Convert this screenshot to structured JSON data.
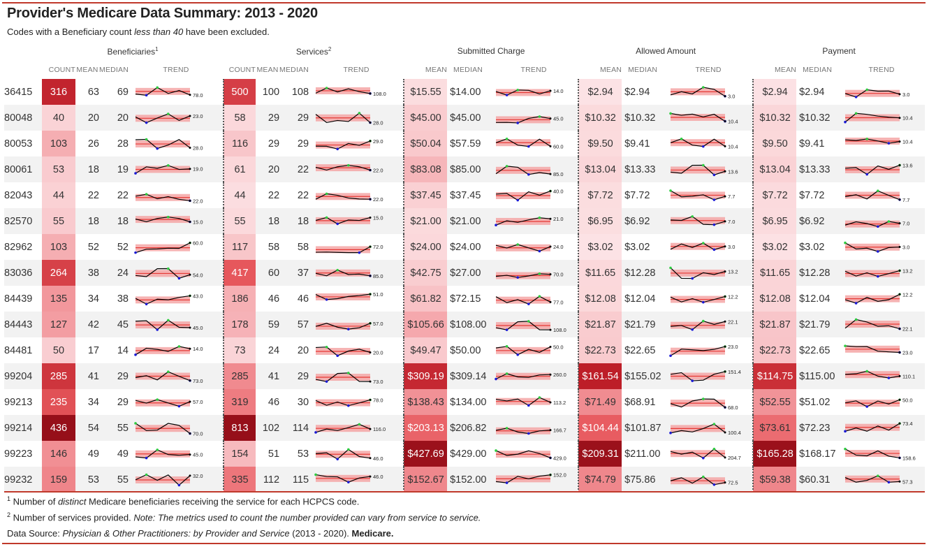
{
  "title": "Provider's Medicare Data Summary: 2013 - 2020",
  "subtitle": {
    "prefix": "Codes with a Beneficiary count ",
    "emph": "less than 40",
    "suffix": " have been excluded."
  },
  "groups": {
    "beneficiaries": "Beneficiaries",
    "beneficiaries_sup": "1",
    "services": "Services",
    "services_sup": "2",
    "submitted": "Submitted Charge",
    "allowed": "Allowed Amount",
    "payment": "Payment"
  },
  "subheaders": {
    "count": "COUNT",
    "mean": "MEAN",
    "median": "MEDIAN",
    "trend": "TREND"
  },
  "rows": [
    {
      "code": "36415",
      "ben": [
        316,
        63,
        69
      ],
      "ben_last": "78.0",
      "svc": [
        500,
        100,
        108
      ],
      "svc_last": "108.0",
      "sub": [
        "$15.55",
        "$14.00"
      ],
      "sub_last": "14.0",
      "alw": [
        "$2.94",
        "$2.94"
      ],
      "alw_last": "3.0",
      "pay": [
        "$2.94",
        "$2.94"
      ],
      "pay_last": "3.0"
    },
    {
      "code": "80048",
      "ben": [
        40,
        20,
        20
      ],
      "ben_last": "23.0",
      "svc": [
        58,
        29,
        29
      ],
      "svc_last": "28.0",
      "sub": [
        "$45.00",
        "$45.00"
      ],
      "sub_last": "45.0",
      "alw": [
        "$10.32",
        "$10.32"
      ],
      "alw_last": "10.4",
      "pay": [
        "$10.32",
        "$10.32"
      ],
      "pay_last": "10.4"
    },
    {
      "code": "80053",
      "ben": [
        103,
        26,
        28
      ],
      "ben_last": "28.0",
      "svc": [
        116,
        29,
        29
      ],
      "svc_last": "29.0",
      "sub": [
        "$50.04",
        "$57.59"
      ],
      "sub_last": "60.0",
      "alw": [
        "$9.50",
        "$9.41"
      ],
      "alw_last": "10.4",
      "pay": [
        "$9.50",
        "$9.41"
      ],
      "pay_last": "10.4"
    },
    {
      "code": "80061",
      "ben": [
        53,
        18,
        19
      ],
      "ben_last": "19.0",
      "svc": [
        61,
        20,
        22
      ],
      "svc_last": "22.0",
      "sub": [
        "$83.08",
        "$85.00"
      ],
      "sub_last": "85.0",
      "alw": [
        "$13.04",
        "$13.33"
      ],
      "alw_last": "13.6",
      "pay": [
        "$13.04",
        "$13.33"
      ],
      "pay_last": "13.6"
    },
    {
      "code": "82043",
      "ben": [
        44,
        22,
        22
      ],
      "ben_last": "22.0",
      "svc": [
        44,
        22,
        22
      ],
      "svc_last": "22.0",
      "sub": [
        "$37.45",
        "$37.45"
      ],
      "sub_last": "40.0",
      "alw": [
        "$7.72",
        "$7.72"
      ],
      "alw_last": "7.7",
      "pay": [
        "$7.72",
        "$7.72"
      ],
      "pay_last": "7.7"
    },
    {
      "code": "82570",
      "ben": [
        55,
        18,
        18
      ],
      "ben_last": "15.0",
      "svc": [
        55,
        18,
        18
      ],
      "svc_last": "15.0",
      "sub": [
        "$21.00",
        "$21.00"
      ],
      "sub_last": "21.0",
      "alw": [
        "$6.95",
        "$6.92"
      ],
      "alw_last": "7.0",
      "pay": [
        "$6.95",
        "$6.92"
      ],
      "pay_last": "7.0"
    },
    {
      "code": "82962",
      "ben": [
        103,
        52,
        52
      ],
      "ben_last": "60.0",
      "svc": [
        117,
        58,
        58
      ],
      "svc_last": "72.0",
      "sub": [
        "$24.00",
        "$24.00"
      ],
      "sub_last": "24.0",
      "alw": [
        "$3.02",
        "$3.02"
      ],
      "alw_last": "3.0",
      "pay": [
        "$3.02",
        "$3.02"
      ],
      "pay_last": "3.0"
    },
    {
      "code": "83036",
      "ben": [
        264,
        38,
        24
      ],
      "ben_last": "54.0",
      "svc": [
        417,
        60,
        37
      ],
      "svc_last": "85.0",
      "sub": [
        "$42.75",
        "$27.00"
      ],
      "sub_last": "70.0",
      "alw": [
        "$11.65",
        "$12.28"
      ],
      "alw_last": "13.2",
      "pay": [
        "$11.65",
        "$12.28"
      ],
      "pay_last": "13.2"
    },
    {
      "code": "84439",
      "ben": [
        135,
        34,
        38
      ],
      "ben_last": "43.0",
      "svc": [
        186,
        46,
        46
      ],
      "svc_last": "51.0",
      "sub": [
        "$61.82",
        "$72.15"
      ],
      "sub_last": "77.0",
      "alw": [
        "$12.08",
        "$12.04"
      ],
      "alw_last": "12.2",
      "pay": [
        "$12.08",
        "$12.04"
      ],
      "pay_last": "12.2"
    },
    {
      "code": "84443",
      "ben": [
        127,
        42,
        45
      ],
      "ben_last": "45.0",
      "svc": [
        178,
        59,
        57
      ],
      "svc_last": "57.0",
      "sub": [
        "$105.66",
        "$108.00"
      ],
      "sub_last": "108.0",
      "alw": [
        "$21.87",
        "$21.79"
      ],
      "alw_last": "22.1",
      "pay": [
        "$21.87",
        "$21.79"
      ],
      "pay_last": "22.1"
    },
    {
      "code": "84481",
      "ben": [
        50,
        17,
        14
      ],
      "ben_last": "14.0",
      "svc": [
        73,
        24,
        20
      ],
      "svc_last": "20.0",
      "sub": [
        "$49.47",
        "$50.00"
      ],
      "sub_last": "50.0",
      "alw": [
        "$22.73",
        "$22.65"
      ],
      "alw_last": "23.0",
      "pay": [
        "$22.73",
        "$22.65"
      ],
      "pay_last": "23.0"
    },
    {
      "code": "99204",
      "ben": [
        285,
        41,
        29
      ],
      "ben_last": "73.0",
      "svc": [
        285,
        41,
        29
      ],
      "svc_last": "73.0",
      "sub": [
        "$309.19",
        "$309.14"
      ],
      "sub_last": "260.0",
      "alw": [
        "$161.54",
        "$155.02"
      ],
      "alw_last": "151.4",
      "pay": [
        "$114.75",
        "$115.00"
      ],
      "pay_last": "110.1"
    },
    {
      "code": "99213",
      "ben": [
        235,
        34,
        29
      ],
      "ben_last": "57.0",
      "svc": [
        319,
        46,
        30
      ],
      "svc_last": "78.0",
      "sub": [
        "$138.43",
        "$134.00"
      ],
      "sub_last": "113.2",
      "alw": [
        "$71.49",
        "$68.91"
      ],
      "alw_last": "68.0",
      "pay": [
        "$52.55",
        "$51.02"
      ],
      "pay_last": "50.0"
    },
    {
      "code": "99214",
      "ben": [
        436,
        54,
        55
      ],
      "ben_last": "70.0",
      "svc": [
        813,
        102,
        114
      ],
      "svc_last": "116.0",
      "sub": [
        "$203.13",
        "$206.82"
      ],
      "sub_last": "166.7",
      "alw": [
        "$104.44",
        "$101.87"
      ],
      "alw_last": "100.4",
      "pay": [
        "$73.61",
        "$72.23"
      ],
      "pay_last": "73.4"
    },
    {
      "code": "99223",
      "ben": [
        146,
        49,
        49
      ],
      "ben_last": "45.0",
      "svc": [
        154,
        51,
        53
      ],
      "svc_last": "46.0",
      "sub": [
        "$427.69",
        "$429.00"
      ],
      "sub_last": "429.0",
      "alw": [
        "$209.31",
        "$211.00"
      ],
      "alw_last": "204.7",
      "pay": [
        "$165.28",
        "$168.17"
      ],
      "pay_last": "158.6"
    },
    {
      "code": "99232",
      "ben": [
        159,
        53,
        55
      ],
      "ben_last": "32.0",
      "svc": [
        335,
        112,
        115
      ],
      "svc_last": "46.0",
      "sub": [
        "$152.67",
        "$152.00"
      ],
      "sub_last": "152.0",
      "alw": [
        "$74.79",
        "$75.86"
      ],
      "alw_last": "72.5",
      "pay": [
        "$59.38",
        "$60.31"
      ],
      "pay_last": "57.3"
    }
  ],
  "footnotes": {
    "f1_sup": "1",
    "f1_a": " Number of ",
    "f1_emph": "distinct",
    "f1_b": " Medicare beneficiaries receiving the service for each HCPCS code.",
    "f2_sup": "2",
    "f2_a": " Number of services provided. ",
    "f2_emph": "Note: The metrics used to count the number provided can vary from service to service.",
    "src_a": "Data Source: ",
    "src_emph": "Physician & Other Practitioners: by Provider and Service",
    "src_b": " (2013 - 2020). ",
    "src_bold": "Medicare."
  },
  "colors": {
    "accent": "#c0392b",
    "heat_low": "#fde8ea",
    "heat_high": "#a50f15",
    "band": "#f08080",
    "line": "#000000",
    "min_dot": "#0000cc",
    "max_dot": "#22cc22"
  }
}
